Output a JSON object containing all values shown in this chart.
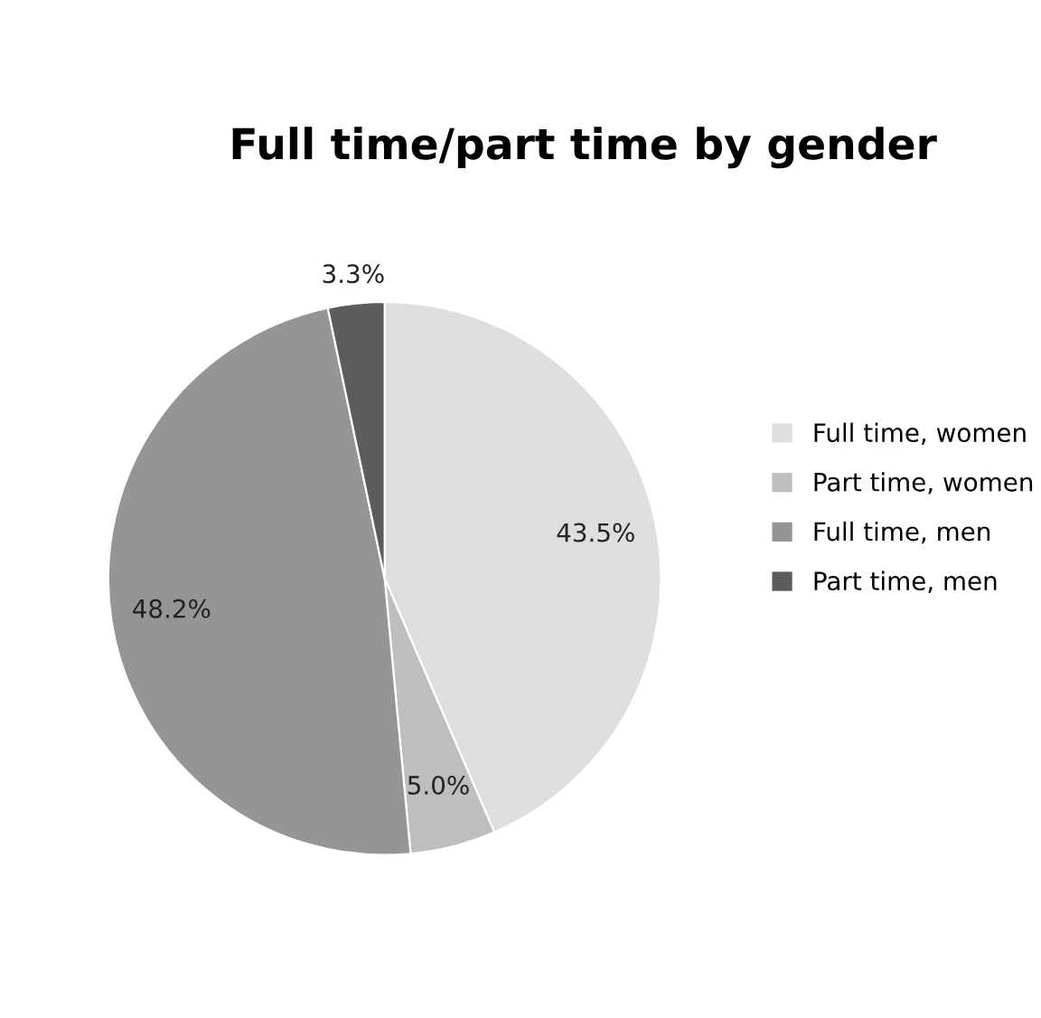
{
  "chart_data": {
    "type": "pie",
    "title": "Full time/part time by gender",
    "categories": [
      "Full time, women",
      "Part time, women",
      "Full time, men",
      "Part time, men"
    ],
    "values": [
      43.5,
      5.0,
      48.2,
      3.3
    ],
    "colors": [
      "#dedede",
      "#bebebe",
      "#959595",
      "#5c5c5c"
    ],
    "value_labels": [
      "43.5%",
      "5.0%",
      "48.2%",
      "3.3%"
    ],
    "legend": "right"
  }
}
